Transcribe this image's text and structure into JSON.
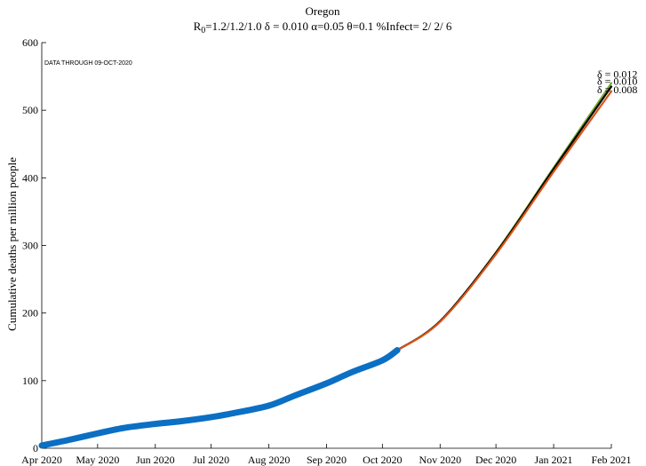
{
  "chart_data": {
    "type": "line",
    "title": "Oregon",
    "subtitle": {
      "r_prefix": "R",
      "r_sub": "0",
      "rest": "=1.2/1.2/1.0  δ = 0.010  α=0.05  θ=0.1  %Infect= 2/ 2/ 6"
    },
    "annotation": "DATA THROUGH 09-OCT-2020",
    "xlabel": "",
    "ylabel": "Cumulative deaths per million people",
    "x_ticks": [
      "Apr 2020",
      "May 2020",
      "Jun 2020",
      "Jul 2020",
      "Aug 2020",
      "Sep 2020",
      "Oct 2020",
      "Nov 2020",
      "Dec 2020",
      "Jan 2021",
      "Feb 2021"
    ],
    "y_ticks": [
      0,
      100,
      200,
      300,
      400,
      500,
      600
    ],
    "ylim": [
      0,
      600
    ],
    "xlim": [
      "2020-04-01",
      "2021-02-01"
    ],
    "grid": false,
    "series": [
      {
        "name": "",
        "kind": "observed",
        "color": "#0b6fc4",
        "points": [
          [
            "2020-04-01",
            4
          ],
          [
            "2020-04-15",
            12
          ],
          [
            "2020-05-01",
            22
          ],
          [
            "2020-05-15",
            30
          ],
          [
            "2020-06-01",
            36
          ],
          [
            "2020-06-15",
            40
          ],
          [
            "2020-07-01",
            46
          ],
          [
            "2020-07-15",
            53
          ],
          [
            "2020-08-01",
            63
          ],
          [
            "2020-08-15",
            78
          ],
          [
            "2020-09-01",
            96
          ],
          [
            "2020-09-15",
            113
          ],
          [
            "2020-10-01",
            130
          ],
          [
            "2020-10-09",
            145
          ]
        ]
      },
      {
        "name": "δ = 0.012",
        "kind": "projection",
        "color": "#77ac30",
        "points": [
          [
            "2020-10-09",
            145
          ],
          [
            "2020-11-01",
            188
          ],
          [
            "2020-12-01",
            290
          ],
          [
            "2021-01-01",
            415
          ],
          [
            "2021-02-01",
            540
          ]
        ]
      },
      {
        "name": "δ = 0.010",
        "kind": "projection",
        "color": "#000000",
        "points": [
          [
            "2020-10-09",
            145
          ],
          [
            "2020-11-01",
            188
          ],
          [
            "2020-12-01",
            289
          ],
          [
            "2021-01-01",
            413
          ],
          [
            "2021-02-01",
            535
          ]
        ]
      },
      {
        "name": "δ = 0.008",
        "kind": "projection",
        "color": "#d95319",
        "points": [
          [
            "2020-10-09",
            145
          ],
          [
            "2020-11-01",
            187
          ],
          [
            "2020-12-01",
            287
          ],
          [
            "2021-01-01",
            409
          ],
          [
            "2021-02-01",
            528
          ]
        ]
      }
    ]
  }
}
